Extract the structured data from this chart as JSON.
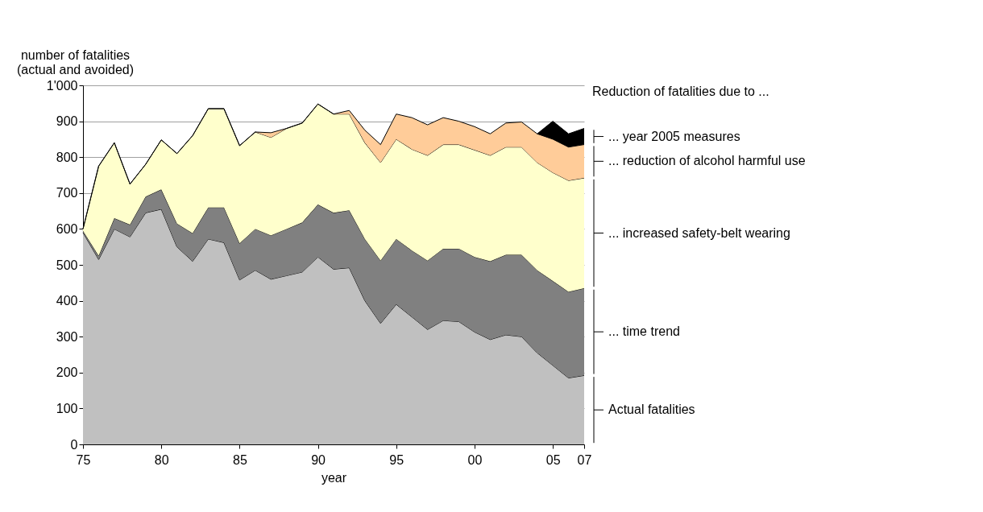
{
  "chart_data": {
    "type": "area",
    "stacked": true,
    "ylabel": "number of fatalities\n(actual and avoided)",
    "xlabel": "year",
    "legend_title": "Reduction of fatalities due to ...",
    "legend": "right",
    "grid": "y",
    "x": [
      1975,
      1976,
      1977,
      1978,
      1979,
      1980,
      1981,
      1982,
      1983,
      1984,
      1985,
      1986,
      1987,
      1988,
      1989,
      1990,
      1991,
      1992,
      1993,
      1994,
      1995,
      1996,
      1997,
      1998,
      1999,
      2000,
      2001,
      2002,
      2003,
      2004,
      2005,
      2006,
      2007
    ],
    "xlim": [
      1975,
      2007
    ],
    "xticks": [
      {
        "value": 1975,
        "label": "75"
      },
      {
        "value": 1980,
        "label": "80"
      },
      {
        "value": 1985,
        "label": "85"
      },
      {
        "value": 1990,
        "label": "90"
      },
      {
        "value": 1995,
        "label": "95"
      },
      {
        "value": 2000,
        "label": "00"
      },
      {
        "value": 2005,
        "label": "05"
      },
      {
        "value": 2007,
        "label": "07"
      }
    ],
    "ylim": [
      0,
      1000
    ],
    "yticks": [
      0,
      100,
      200,
      300,
      400,
      500,
      600,
      700,
      800,
      900,
      {
        "value": 1000,
        "label": "1'000"
      }
    ],
    "series": [
      {
        "name": "Actual fatalities",
        "color": "#c0c0c0",
        "values": [
          590,
          515,
          600,
          578,
          645,
          655,
          550,
          510,
          572,
          562,
          458,
          485,
          460,
          470,
          480,
          522,
          488,
          492,
          400,
          337,
          390,
          355,
          320,
          345,
          342,
          313,
          292,
          305,
          300,
          255,
          220,
          185,
          192
        ]
      },
      {
        "name": "... time trend",
        "color": "#808080",
        "values": [
          5,
          10,
          30,
          34,
          45,
          55,
          65,
          78,
          88,
          98,
          102,
          115,
          122,
          130,
          138,
          146,
          157,
          160,
          172,
          175,
          182,
          185,
          192,
          200,
          203,
          209,
          218,
          223,
          228,
          230,
          235,
          240,
          243
        ]
      },
      {
        "name": "... increased safety-belt wearing",
        "color": "#ffffcc",
        "values": [
          5,
          250,
          210,
          113,
          90,
          138,
          195,
          272,
          275,
          275,
          272,
          270,
          273,
          280,
          277,
          280,
          275,
          268,
          268,
          273,
          278,
          282,
          293,
          290,
          290,
          298,
          295,
          300,
          300,
          300,
          302,
          310,
          307
        ]
      },
      {
        "name": "... reduction of alcohol harmful use",
        "color": "#ffcc99",
        "values": [
          0,
          0,
          0,
          0,
          0,
          0,
          0,
          0,
          0,
          0,
          0,
          0,
          13,
          0,
          0,
          0,
          0,
          10,
          35,
          50,
          70,
          88,
          85,
          75,
          65,
          65,
          60,
          67,
          70,
          80,
          93,
          93,
          93
        ]
      },
      {
        "name": "... year 2005 measures",
        "color": "#000000",
        "values": [
          null,
          null,
          null,
          null,
          null,
          null,
          null,
          null,
          null,
          null,
          null,
          null,
          null,
          null,
          null,
          null,
          null,
          null,
          null,
          null,
          null,
          null,
          null,
          null,
          null,
          null,
          null,
          null,
          null,
          0,
          50,
          37,
          45
        ]
      }
    ]
  }
}
